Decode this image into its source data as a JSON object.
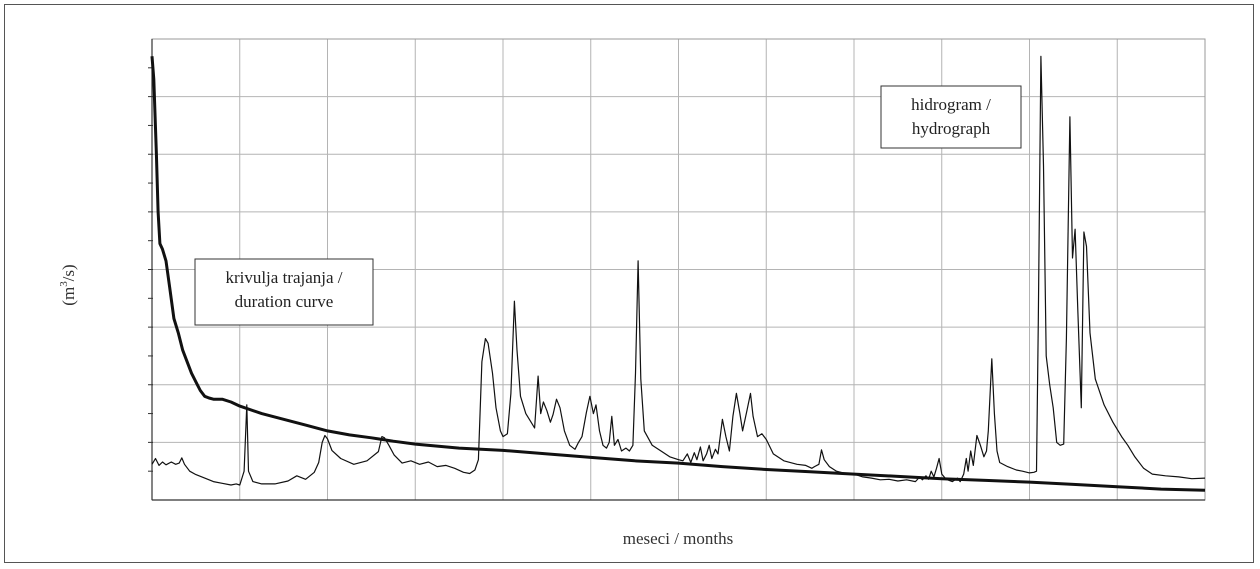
{
  "chart_data": {
    "type": "line",
    "title": "",
    "xlabel": "meseci / months",
    "ylabel_prefix": "(m",
    "ylabel_sup": "3",
    "ylabel_suffix": "/s)",
    "grid": true,
    "x_tick_labels": "none",
    "y_tick_labels": "none",
    "xlim": [
      0,
      12
    ],
    "ylim": [
      0,
      8
    ],
    "annotations": [
      {
        "series": "duration",
        "lines": [
          "krivulja trajanja /",
          "duration curve"
        ]
      },
      {
        "series": "hydrograph",
        "lines": [
          "hidrogram /",
          "hydrograph"
        ]
      }
    ],
    "series": [
      {
        "id": "hydrograph",
        "style": "thin",
        "points": [
          [
            0.0,
            0.62
          ],
          [
            0.04,
            0.72
          ],
          [
            0.08,
            0.6
          ],
          [
            0.12,
            0.66
          ],
          [
            0.16,
            0.61
          ],
          [
            0.22,
            0.66
          ],
          [
            0.27,
            0.62
          ],
          [
            0.31,
            0.64
          ],
          [
            0.34,
            0.73
          ],
          [
            0.37,
            0.62
          ],
          [
            0.43,
            0.5
          ],
          [
            0.5,
            0.44
          ],
          [
            0.6,
            0.38
          ],
          [
            0.7,
            0.32
          ],
          [
            0.8,
            0.29
          ],
          [
            0.9,
            0.26
          ],
          [
            0.96,
            0.28
          ],
          [
            1.0,
            0.26
          ],
          [
            1.05,
            0.5
          ],
          [
            1.08,
            1.65
          ],
          [
            1.1,
            0.5
          ],
          [
            1.15,
            0.32
          ],
          [
            1.25,
            0.28
          ],
          [
            1.4,
            0.28
          ],
          [
            1.55,
            0.33
          ],
          [
            1.65,
            0.42
          ],
          [
            1.75,
            0.36
          ],
          [
            1.85,
            0.48
          ],
          [
            1.9,
            0.65
          ],
          [
            1.94,
            1.0
          ],
          [
            1.97,
            1.12
          ],
          [
            2.0,
            1.06
          ],
          [
            2.05,
            0.86
          ],
          [
            2.15,
            0.72
          ],
          [
            2.3,
            0.62
          ],
          [
            2.45,
            0.68
          ],
          [
            2.58,
            0.84
          ],
          [
            2.62,
            1.1
          ],
          [
            2.65,
            1.08
          ],
          [
            2.7,
            0.95
          ],
          [
            2.76,
            0.78
          ],
          [
            2.85,
            0.64
          ],
          [
            2.95,
            0.68
          ],
          [
            3.05,
            0.62
          ],
          [
            3.15,
            0.66
          ],
          [
            3.25,
            0.58
          ],
          [
            3.35,
            0.6
          ],
          [
            3.45,
            0.55
          ],
          [
            3.55,
            0.48
          ],
          [
            3.62,
            0.46
          ],
          [
            3.68,
            0.52
          ],
          [
            3.72,
            0.7
          ],
          [
            3.76,
            2.4
          ],
          [
            3.8,
            2.8
          ],
          [
            3.83,
            2.72
          ],
          [
            3.88,
            2.2
          ],
          [
            3.92,
            1.6
          ],
          [
            3.97,
            1.2
          ],
          [
            4.0,
            1.1
          ],
          [
            4.05,
            1.15
          ],
          [
            4.09,
            1.85
          ],
          [
            4.13,
            3.45
          ],
          [
            4.16,
            2.6
          ],
          [
            4.2,
            1.8
          ],
          [
            4.26,
            1.5
          ],
          [
            4.32,
            1.35
          ],
          [
            4.36,
            1.25
          ],
          [
            4.4,
            2.15
          ],
          [
            4.43,
            1.5
          ],
          [
            4.46,
            1.7
          ],
          [
            4.5,
            1.55
          ],
          [
            4.54,
            1.35
          ],
          [
            4.57,
            1.48
          ],
          [
            4.61,
            1.75
          ],
          [
            4.65,
            1.6
          ],
          [
            4.7,
            1.2
          ],
          [
            4.76,
            0.95
          ],
          [
            4.82,
            0.88
          ],
          [
            4.86,
            1.0
          ],
          [
            4.9,
            1.1
          ],
          [
            4.95,
            1.52
          ],
          [
            4.99,
            1.8
          ],
          [
            5.03,
            1.5
          ],
          [
            5.06,
            1.65
          ],
          [
            5.1,
            1.2
          ],
          [
            5.14,
            0.95
          ],
          [
            5.18,
            0.9
          ],
          [
            5.21,
            1.0
          ],
          [
            5.24,
            1.45
          ],
          [
            5.27,
            0.95
          ],
          [
            5.31,
            1.05
          ],
          [
            5.35,
            0.85
          ],
          [
            5.4,
            0.9
          ],
          [
            5.44,
            0.85
          ],
          [
            5.48,
            0.95
          ],
          [
            5.51,
            2.2
          ],
          [
            5.54,
            4.15
          ],
          [
            5.57,
            2.1
          ],
          [
            5.61,
            1.2
          ],
          [
            5.7,
            0.95
          ],
          [
            5.8,
            0.85
          ],
          [
            5.9,
            0.75
          ],
          [
            6.0,
            0.7
          ],
          [
            6.05,
            0.68
          ],
          [
            6.1,
            0.8
          ],
          [
            6.14,
            0.65
          ],
          [
            6.18,
            0.82
          ],
          [
            6.21,
            0.7
          ],
          [
            6.25,
            0.92
          ],
          [
            6.28,
            0.68
          ],
          [
            6.32,
            0.8
          ],
          [
            6.35,
            0.95
          ],
          [
            6.38,
            0.72
          ],
          [
            6.42,
            0.88
          ],
          [
            6.45,
            0.8
          ],
          [
            6.5,
            1.4
          ],
          [
            6.54,
            1.1
          ],
          [
            6.58,
            0.85
          ],
          [
            6.62,
            1.45
          ],
          [
            6.66,
            1.85
          ],
          [
            6.7,
            1.5
          ],
          [
            6.73,
            1.2
          ],
          [
            6.78,
            1.55
          ],
          [
            6.82,
            1.85
          ],
          [
            6.85,
            1.45
          ],
          [
            6.9,
            1.1
          ],
          [
            6.95,
            1.15
          ],
          [
            7.0,
            1.05
          ],
          [
            7.08,
            0.8
          ],
          [
            7.2,
            0.68
          ],
          [
            7.35,
            0.62
          ],
          [
            7.45,
            0.6
          ],
          [
            7.52,
            0.55
          ],
          [
            7.55,
            0.58
          ],
          [
            7.6,
            0.62
          ],
          [
            7.63,
            0.87
          ],
          [
            7.66,
            0.7
          ],
          [
            7.72,
            0.58
          ],
          [
            7.8,
            0.5
          ],
          [
            7.9,
            0.46
          ],
          [
            8.0,
            0.45
          ],
          [
            8.1,
            0.4
          ],
          [
            8.2,
            0.38
          ],
          [
            8.3,
            0.35
          ],
          [
            8.4,
            0.36
          ],
          [
            8.5,
            0.33
          ],
          [
            8.6,
            0.35
          ],
          [
            8.7,
            0.32
          ],
          [
            8.75,
            0.4
          ],
          [
            8.78,
            0.35
          ],
          [
            8.82,
            0.42
          ],
          [
            8.85,
            0.36
          ],
          [
            8.88,
            0.5
          ],
          [
            8.91,
            0.4
          ],
          [
            8.94,
            0.55
          ],
          [
            8.97,
            0.72
          ],
          [
            9.0,
            0.45
          ],
          [
            9.05,
            0.36
          ],
          [
            9.12,
            0.32
          ],
          [
            9.18,
            0.38
          ],
          [
            9.21,
            0.32
          ],
          [
            9.25,
            0.45
          ],
          [
            9.28,
            0.72
          ],
          [
            9.3,
            0.5
          ],
          [
            9.33,
            0.85
          ],
          [
            9.36,
            0.6
          ],
          [
            9.4,
            1.12
          ],
          [
            9.44,
            0.95
          ],
          [
            9.48,
            0.75
          ],
          [
            9.51,
            0.85
          ],
          [
            9.53,
            1.2
          ],
          [
            9.57,
            2.45
          ],
          [
            9.6,
            1.5
          ],
          [
            9.63,
            0.85
          ],
          [
            9.66,
            0.65
          ],
          [
            9.75,
            0.58
          ],
          [
            9.85,
            0.52
          ],
          [
            9.92,
            0.5
          ],
          [
            10.0,
            0.47
          ],
          [
            10.05,
            0.48
          ],
          [
            10.08,
            0.5
          ],
          [
            10.1,
            3.1
          ],
          [
            10.13,
            7.7
          ],
          [
            10.16,
            5.8
          ],
          [
            10.19,
            2.5
          ],
          [
            10.23,
            2.0
          ],
          [
            10.27,
            1.6
          ],
          [
            10.31,
            1.0
          ],
          [
            10.35,
            0.95
          ],
          [
            10.39,
            0.97
          ],
          [
            10.42,
            2.8
          ],
          [
            10.46,
            6.65
          ],
          [
            10.49,
            4.2
          ],
          [
            10.52,
            4.7
          ],
          [
            10.55,
            3.3
          ],
          [
            10.59,
            1.6
          ],
          [
            10.62,
            4.65
          ],
          [
            10.65,
            4.4
          ],
          [
            10.69,
            2.9
          ],
          [
            10.75,
            2.1
          ],
          [
            10.85,
            1.65
          ],
          [
            10.95,
            1.35
          ],
          [
            11.05,
            1.1
          ],
          [
            11.12,
            0.95
          ],
          [
            11.2,
            0.75
          ],
          [
            11.3,
            0.55
          ],
          [
            11.4,
            0.45
          ],
          [
            11.55,
            0.42
          ],
          [
            11.7,
            0.4
          ],
          [
            11.85,
            0.37
          ],
          [
            12.0,
            0.38
          ]
        ]
      },
      {
        "id": "duration",
        "style": "thick",
        "points": [
          [
            0.0,
            7.7
          ],
          [
            0.02,
            7.3
          ],
          [
            0.05,
            6.0
          ],
          [
            0.07,
            5.0
          ],
          [
            0.09,
            4.45
          ],
          [
            0.12,
            4.35
          ],
          [
            0.16,
            4.15
          ],
          [
            0.2,
            3.7
          ],
          [
            0.25,
            3.15
          ],
          [
            0.3,
            2.9
          ],
          [
            0.35,
            2.6
          ],
          [
            0.4,
            2.4
          ],
          [
            0.45,
            2.2
          ],
          [
            0.5,
            2.05
          ],
          [
            0.55,
            1.9
          ],
          [
            0.6,
            1.8
          ],
          [
            0.65,
            1.77
          ],
          [
            0.7,
            1.75
          ],
          [
            0.8,
            1.75
          ],
          [
            0.9,
            1.7
          ],
          [
            1.0,
            1.63
          ],
          [
            1.25,
            1.5
          ],
          [
            1.5,
            1.4
          ],
          [
            1.75,
            1.3
          ],
          [
            2.0,
            1.2
          ],
          [
            2.25,
            1.13
          ],
          [
            2.5,
            1.08
          ],
          [
            2.75,
            1.02
          ],
          [
            3.0,
            0.97
          ],
          [
            3.5,
            0.9
          ],
          [
            4.0,
            0.86
          ],
          [
            4.5,
            0.8
          ],
          [
            5.0,
            0.74
          ],
          [
            5.5,
            0.68
          ],
          [
            6.0,
            0.64
          ],
          [
            6.5,
            0.58
          ],
          [
            7.0,
            0.53
          ],
          [
            7.5,
            0.49
          ],
          [
            8.0,
            0.45
          ],
          [
            8.5,
            0.41
          ],
          [
            9.0,
            0.37
          ],
          [
            9.5,
            0.34
          ],
          [
            10.0,
            0.31
          ],
          [
            10.5,
            0.27
          ],
          [
            11.0,
            0.23
          ],
          [
            11.5,
            0.19
          ],
          [
            12.0,
            0.17
          ]
        ]
      }
    ]
  }
}
